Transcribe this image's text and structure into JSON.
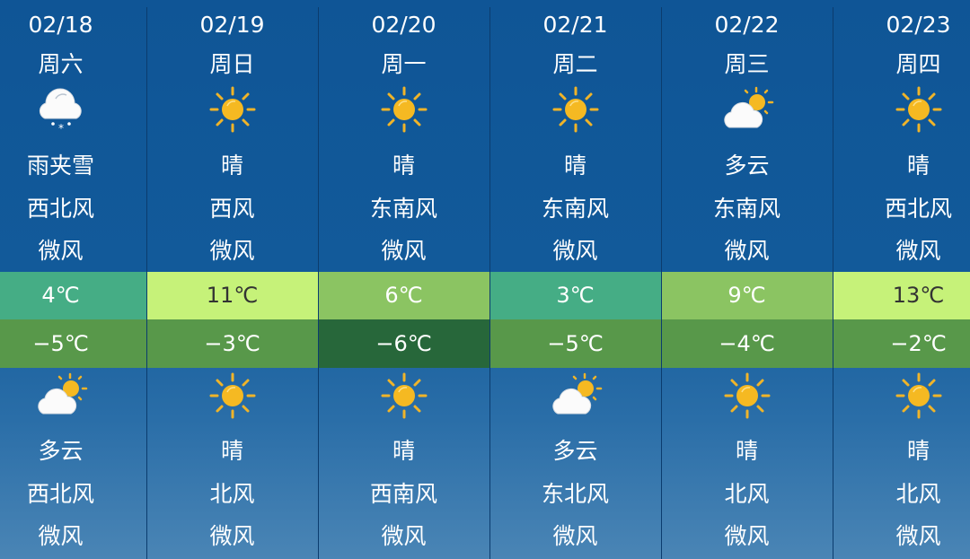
{
  "days": [
    {
      "date": "02/18",
      "weekday": "周六",
      "day": {
        "icon": "rain-snow-icon",
        "weather": "雨夹雪",
        "wind_dir": "西北风",
        "wind_level": "微风"
      },
      "high": "4℃",
      "high_color": "#45ad85",
      "high_text": "#ffffff",
      "low": "−5℃",
      "low_color": "#58984a",
      "night": {
        "icon": "partly-cloudy-icon",
        "weather": "多云",
        "wind_dir": "西北风",
        "wind_level": "微风"
      }
    },
    {
      "date": "02/19",
      "weekday": "周日",
      "day": {
        "icon": "sun-icon",
        "weather": "晴",
        "wind_dir": "西风",
        "wind_level": "微风"
      },
      "high": "11℃",
      "high_color": "#c6f279",
      "high_text": "#333333",
      "low": "−3℃",
      "low_color": "#58984a",
      "night": {
        "icon": "sun-icon",
        "weather": "晴",
        "wind_dir": "北风",
        "wind_level": "微风"
      }
    },
    {
      "date": "02/20",
      "weekday": "周一",
      "day": {
        "icon": "sun-icon",
        "weather": "晴",
        "wind_dir": "东南风",
        "wind_level": "微风"
      },
      "high": "6℃",
      "high_color": "#8bc462",
      "high_text": "#ffffff",
      "low": "−6℃",
      "low_color": "#27673a",
      "night": {
        "icon": "sun-icon",
        "weather": "晴",
        "wind_dir": "西南风",
        "wind_level": "微风"
      }
    },
    {
      "date": "02/21",
      "weekday": "周二",
      "day": {
        "icon": "sun-icon",
        "weather": "晴",
        "wind_dir": "东南风",
        "wind_level": "微风"
      },
      "high": "3℃",
      "high_color": "#45ad85",
      "high_text": "#ffffff",
      "low": "−5℃",
      "low_color": "#58984a",
      "night": {
        "icon": "partly-cloudy-icon",
        "weather": "多云",
        "wind_dir": "东北风",
        "wind_level": "微风"
      }
    },
    {
      "date": "02/22",
      "weekday": "周三",
      "day": {
        "icon": "partly-cloudy-icon",
        "weather": "多云",
        "wind_dir": "东南风",
        "wind_level": "微风"
      },
      "high": "9℃",
      "high_color": "#8bc462",
      "high_text": "#ffffff",
      "low": "−4℃",
      "low_color": "#58984a",
      "night": {
        "icon": "sun-icon",
        "weather": "晴",
        "wind_dir": "北风",
        "wind_level": "微风"
      }
    },
    {
      "date": "02/23",
      "weekday": "周四",
      "day": {
        "icon": "sun-icon",
        "weather": "晴",
        "wind_dir": "西北风",
        "wind_level": "微风"
      },
      "high": "13℃",
      "high_color": "#c6f279",
      "high_text": "#333333",
      "low": "−2℃",
      "low_color": "#58984a",
      "night": {
        "icon": "sun-icon",
        "weather": "晴",
        "wind_dir": "北风",
        "wind_level": "微风"
      }
    }
  ]
}
